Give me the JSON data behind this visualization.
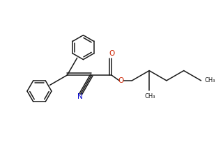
{
  "bg_color": "#ffffff",
  "line_color": "#1a1a1a",
  "o_color": "#cc2200",
  "n_color": "#0000cc",
  "bond_lw": 1.1,
  "font_size": 7.0,
  "ring_r": 0.55,
  "xlim": [
    0,
    10
  ],
  "ylim": [
    0,
    6.875
  ]
}
